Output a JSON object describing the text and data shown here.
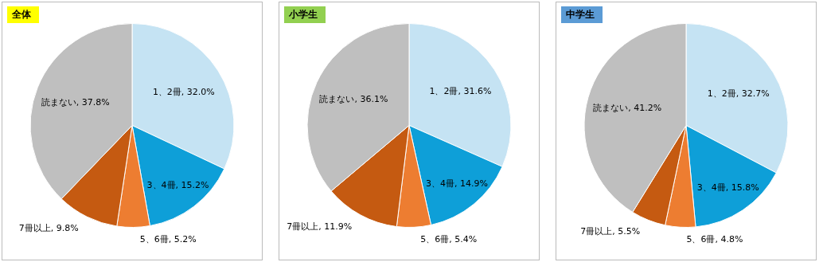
{
  "chart_data": [
    {
      "type": "pie",
      "title": "全体",
      "categories": [
        "1、2冊",
        "3、4冊",
        "5、6冊",
        "7冊以上",
        "読まない"
      ],
      "values": [
        32.0,
        15.2,
        5.2,
        9.8,
        37.8
      ],
      "colors": [
        "#c5e3f3",
        "#0e9fd8",
        "#ed7d31",
        "#c55a11",
        "#bfbfbf"
      ],
      "value_labels": [
        "32.0%",
        "15.2%",
        "5.2%",
        "9.8%",
        "37.8%"
      ]
    },
    {
      "type": "pie",
      "title": "小学生",
      "categories": [
        "1、2冊",
        "3、4冊",
        "5、6冊",
        "7冊以上",
        "読まない"
      ],
      "values": [
        31.6,
        14.9,
        5.4,
        11.9,
        36.1
      ],
      "colors": [
        "#c5e3f3",
        "#0e9fd8",
        "#ed7d31",
        "#c55a11",
        "#bfbfbf"
      ],
      "value_labels": [
        "31.6%",
        "14.9%",
        "5.4%",
        "11.9%",
        "36.1%"
      ]
    },
    {
      "type": "pie",
      "title": "中学生",
      "categories": [
        "1、2冊",
        "3、4冊",
        "5、6冊",
        "7冊以上",
        "読まない"
      ],
      "values": [
        32.7,
        15.8,
        4.8,
        5.5,
        41.2
      ],
      "colors": [
        "#c5e3f3",
        "#0e9fd8",
        "#ed7d31",
        "#c55a11",
        "#bfbfbf"
      ],
      "value_labels": [
        "32.7%",
        "15.8%",
        "4.8%",
        "5.5%",
        "41.2%"
      ]
    }
  ]
}
